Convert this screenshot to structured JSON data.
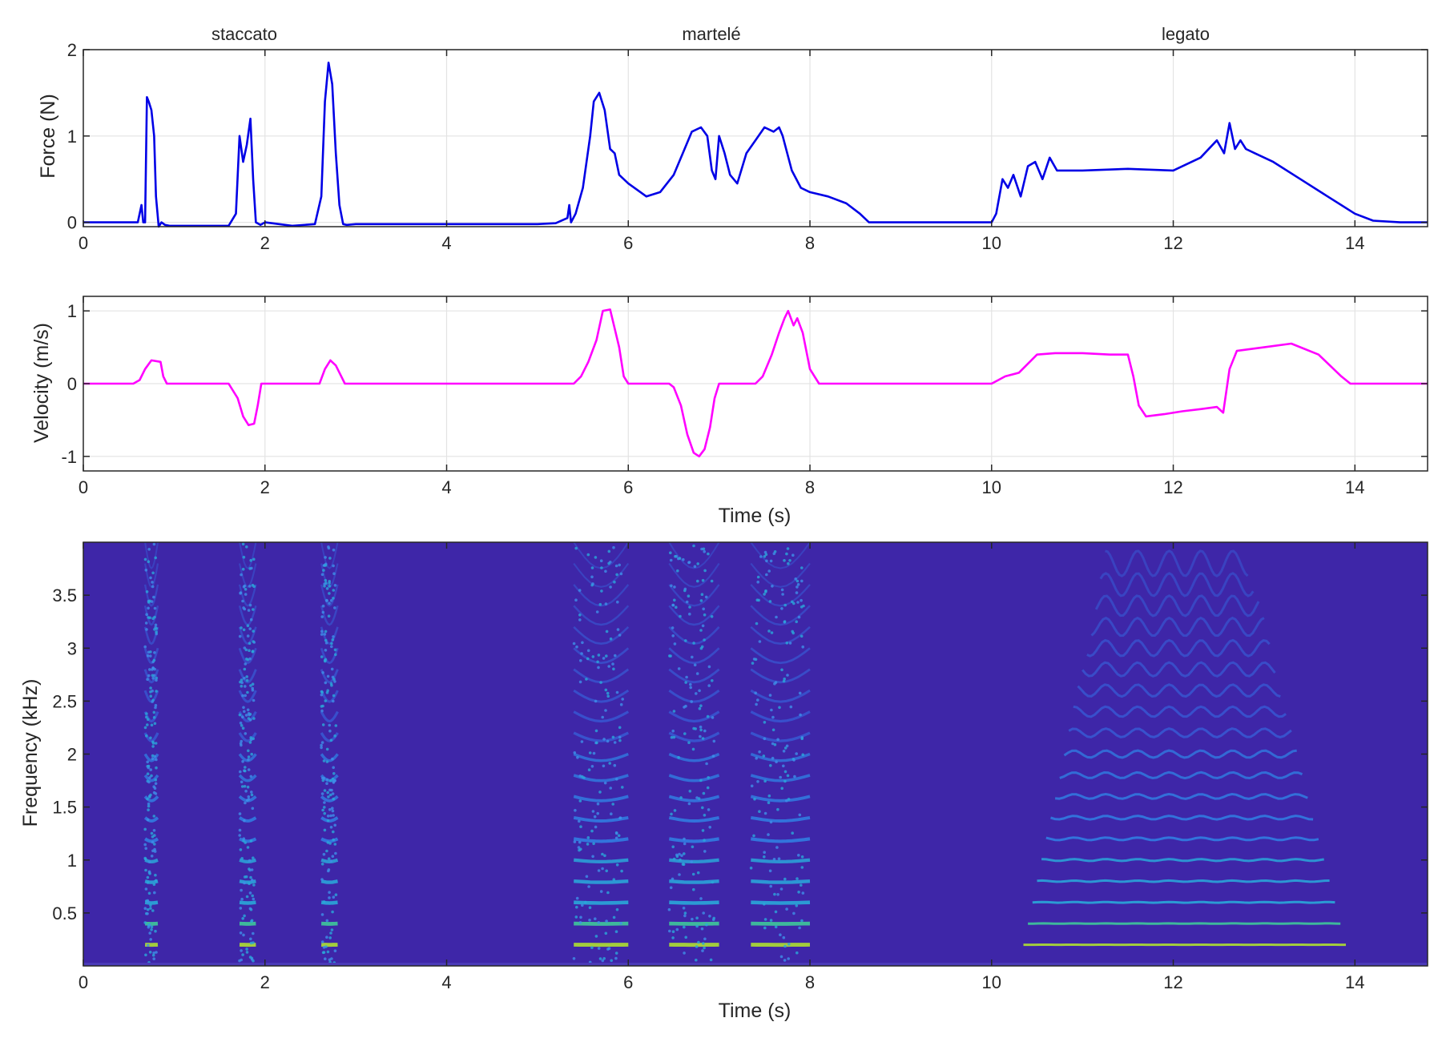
{
  "chart_data": [
    {
      "type": "line",
      "sections": [
        "staccato",
        "martelé",
        "legato"
      ],
      "xlabel": "",
      "ylabel": "Force (N)",
      "xlim": [
        0,
        14.8
      ],
      "ylim": [
        -0.05,
        2
      ],
      "xticks": [
        "0",
        "2",
        "4",
        "6",
        "8",
        "10",
        "12",
        "14"
      ],
      "yticks": [
        "0",
        "1",
        "2"
      ],
      "grid": true,
      "color": "#0000e6",
      "series": [
        {
          "x": [
            0,
            0.6,
            0.64,
            0.66,
            0.68,
            0.7,
            0.72,
            0.75,
            0.78,
            0.8,
            0.83,
            0.86,
            0.9,
            0.95,
            1.1,
            1.5,
            1.6,
            1.68,
            1.72,
            1.76,
            1.8,
            1.84,
            1.87,
            1.9,
            1.95,
            2.0,
            2.3,
            2.55,
            2.62,
            2.66,
            2.7,
            2.74,
            2.78,
            2.82,
            2.86,
            2.9,
            3.0,
            4.0,
            5.0,
            5.2,
            5.33,
            5.35,
            5.37,
            5.42,
            5.5,
            5.58,
            5.62,
            5.68,
            5.74,
            5.8,
            5.85,
            5.9,
            6.0,
            6.2,
            6.35,
            6.5,
            6.6,
            6.7,
            6.8,
            6.87,
            6.92,
            6.96,
            7.0,
            7.06,
            7.12,
            7.2,
            7.3,
            7.4,
            7.5,
            7.6,
            7.66,
            7.7,
            7.75,
            7.8,
            7.9,
            8.0,
            8.2,
            8.4,
            8.55,
            8.65,
            9.0,
            10.0,
            10.05,
            10.12,
            10.18,
            10.24,
            10.32,
            10.4,
            10.48,
            10.56,
            10.64,
            10.72,
            10.8,
            11.0,
            11.5,
            12.0,
            12.3,
            12.48,
            12.56,
            12.62,
            12.68,
            12.74,
            12.8,
            12.9,
            13.1,
            13.4,
            13.7,
            14.0,
            14.2,
            14.5,
            14.8
          ],
          "y": [
            0.0,
            0.0,
            0.2,
            0.0,
            0.0,
            1.45,
            1.4,
            1.3,
            1.0,
            0.3,
            -0.05,
            0.0,
            -0.03,
            -0.04,
            -0.04,
            -0.04,
            -0.04,
            0.1,
            1.0,
            0.7,
            0.9,
            1.2,
            0.5,
            0.0,
            -0.03,
            0.0,
            -0.04,
            -0.02,
            0.3,
            1.4,
            1.85,
            1.6,
            0.8,
            0.2,
            -0.02,
            -0.03,
            -0.02,
            -0.02,
            -0.02,
            -0.01,
            0.05,
            0.2,
            0.0,
            0.1,
            0.4,
            1.0,
            1.4,
            1.5,
            1.3,
            0.85,
            0.8,
            0.55,
            0.45,
            0.3,
            0.35,
            0.55,
            0.8,
            1.05,
            1.1,
            1.0,
            0.6,
            0.5,
            1.0,
            0.8,
            0.55,
            0.45,
            0.8,
            0.95,
            1.1,
            1.05,
            1.1,
            1.0,
            0.8,
            0.6,
            0.4,
            0.35,
            0.3,
            0.22,
            0.1,
            0.0,
            0.0,
            0.0,
            0.1,
            0.5,
            0.4,
            0.55,
            0.3,
            0.65,
            0.7,
            0.5,
            0.75,
            0.6,
            0.6,
            0.6,
            0.62,
            0.6,
            0.75,
            0.95,
            0.8,
            1.15,
            0.85,
            0.95,
            0.85,
            0.8,
            0.7,
            0.5,
            0.3,
            0.1,
            0.02,
            0.0,
            0.0
          ]
        }
      ]
    },
    {
      "type": "line",
      "xlabel": "Time (s)",
      "ylabel": "Velocity (m/s)",
      "xlim": [
        0,
        14.8
      ],
      "ylim": [
        -1.2,
        1.2
      ],
      "xticks": [
        "0",
        "2",
        "4",
        "6",
        "8",
        "10",
        "12",
        "14"
      ],
      "yticks": [
        "-1",
        "0",
        "1"
      ],
      "grid": true,
      "color": "#ff00ff",
      "series": [
        {
          "x": [
            0,
            0.55,
            0.62,
            0.68,
            0.75,
            0.85,
            0.88,
            0.92,
            1.6,
            1.7,
            1.76,
            1.82,
            1.88,
            1.92,
            1.96,
            2.6,
            2.66,
            2.72,
            2.78,
            2.84,
            2.88,
            3.0,
            5.4,
            5.48,
            5.56,
            5.65,
            5.72,
            5.8,
            5.9,
            5.95,
            6.0,
            6.45,
            6.5,
            6.58,
            6.65,
            6.72,
            6.78,
            6.84,
            6.9,
            6.95,
            7.0,
            7.4,
            7.48,
            7.58,
            7.66,
            7.72,
            7.76,
            7.82,
            7.86,
            7.92,
            8.0,
            8.1,
            10.0,
            10.15,
            10.3,
            10.42,
            10.5,
            10.7,
            11.0,
            11.3,
            11.5,
            11.56,
            11.62,
            11.7,
            11.9,
            12.1,
            12.3,
            12.48,
            12.55,
            12.62,
            12.7,
            13.0,
            13.3,
            13.6,
            13.85,
            13.95,
            14.8
          ],
          "y": [
            0,
            0,
            0.05,
            0.2,
            0.32,
            0.3,
            0.1,
            0,
            0,
            -0.2,
            -0.45,
            -0.57,
            -0.55,
            -0.3,
            0,
            0,
            0.2,
            0.32,
            0.25,
            0.1,
            0,
            0,
            0,
            0.1,
            0.3,
            0.6,
            1.0,
            1.02,
            0.5,
            0.1,
            0,
            0,
            -0.05,
            -0.3,
            -0.7,
            -0.95,
            -1.0,
            -0.9,
            -0.6,
            -0.2,
            0,
            0,
            0.1,
            0.4,
            0.7,
            0.9,
            1.0,
            0.8,
            0.9,
            0.7,
            0.2,
            0,
            0,
            0.1,
            0.15,
            0.3,
            0.4,
            0.42,
            0.42,
            0.4,
            0.4,
            0.1,
            -0.3,
            -0.45,
            -0.42,
            -0.38,
            -0.35,
            -0.32,
            -0.4,
            0.2,
            0.45,
            0.5,
            0.55,
            0.4,
            0.1,
            0,
            0
          ]
        }
      ]
    },
    {
      "type": "heatmap",
      "xlabel": "Time (s)",
      "ylabel": "Frequency (kHz)",
      "xlim": [
        0,
        14.8
      ],
      "ylim": [
        0,
        4
      ],
      "xticks": [
        "0",
        "2",
        "4",
        "6",
        "8",
        "10",
        "12",
        "14"
      ],
      "yticks": [
        "0.5",
        "1",
        "1.5",
        "2",
        "2.5",
        "3",
        "3.5"
      ],
      "colormap": "parula",
      "background": "#3e26a8",
      "segments": [
        {
          "t0": 0.68,
          "t1": 0.82,
          "note": "staccato"
        },
        {
          "t0": 1.72,
          "t1": 1.9,
          "note": "staccato"
        },
        {
          "t0": 2.62,
          "t1": 2.8,
          "note": "staccato"
        },
        {
          "t0": 5.4,
          "t1": 6.0,
          "note": "martelé"
        },
        {
          "t0": 6.45,
          "t1": 7.0,
          "note": "martelé"
        },
        {
          "t0": 7.35,
          "t1": 8.0,
          "note": "martelé"
        },
        {
          "t0": 10.3,
          "t1": 13.9,
          "note": "legato"
        }
      ],
      "fundamental_khz": 0.2
    }
  ]
}
